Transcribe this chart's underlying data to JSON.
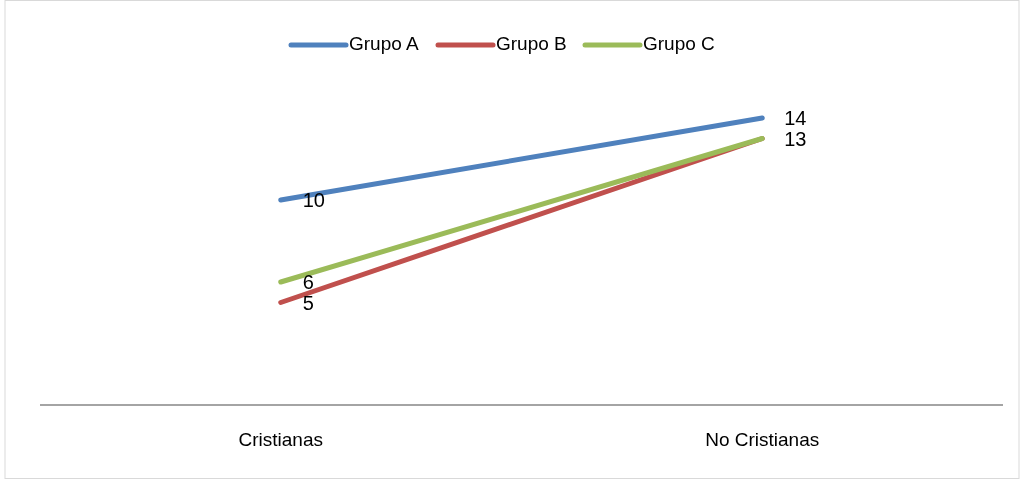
{
  "chart_data": {
    "type": "line",
    "categories": [
      "Cristianas",
      "No Cristianas"
    ],
    "series": [
      {
        "name": "Grupo A",
        "color": "#4f81bd",
        "values": [
          10,
          14
        ],
        "value_labels": [
          "10",
          "14"
        ]
      },
      {
        "name": "Grupo B",
        "color": "#c0504d",
        "values": [
          5,
          13
        ],
        "value_labels": [
          "5",
          null
        ]
      },
      {
        "name": "Grupo C",
        "color": "#9bbb59",
        "values": [
          6,
          13
        ],
        "value_labels": [
          "6",
          "13"
        ]
      }
    ],
    "tick_labels": "x",
    "legend": "top",
    "grid": false,
    "line_style": "solid"
  }
}
